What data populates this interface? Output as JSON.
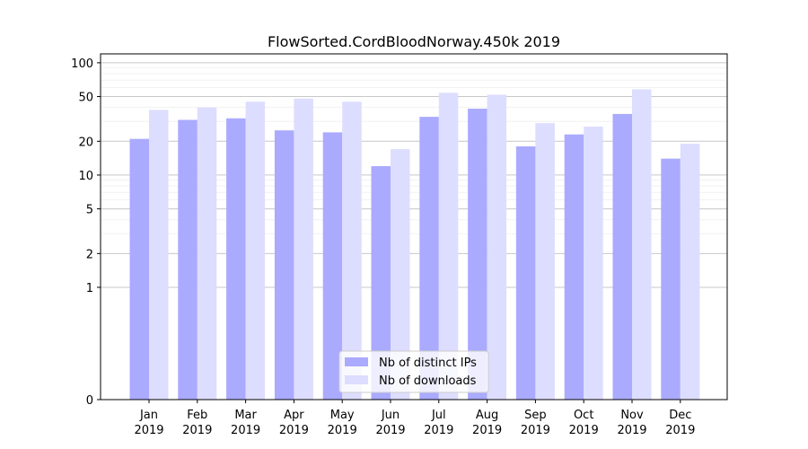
{
  "chart_data": {
    "type": "bar",
    "title": "FlowSorted.CordBloodNorway.450k 2019",
    "xlabel": "",
    "ylabel": "",
    "y_scale": "symlog",
    "ylim": [
      0,
      120
    ],
    "y_ticks": [
      0,
      1,
      2,
      5,
      10,
      20,
      50,
      100
    ],
    "grid": "horizontal",
    "legend_position": "bottom-center",
    "categories": [
      {
        "month": "Jan",
        "year": "2019"
      },
      {
        "month": "Feb",
        "year": "2019"
      },
      {
        "month": "Mar",
        "year": "2019"
      },
      {
        "month": "Apr",
        "year": "2019"
      },
      {
        "month": "May",
        "year": "2019"
      },
      {
        "month": "Jun",
        "year": "2019"
      },
      {
        "month": "Jul",
        "year": "2019"
      },
      {
        "month": "Aug",
        "year": "2019"
      },
      {
        "month": "Sep",
        "year": "2019"
      },
      {
        "month": "Oct",
        "year": "2019"
      },
      {
        "month": "Nov",
        "year": "2019"
      },
      {
        "month": "Dec",
        "year": "2019"
      }
    ],
    "series": [
      {
        "name": "Nb of distinct IPs",
        "color": "#aaaaff",
        "values": [
          21,
          31,
          32,
          25,
          24,
          12,
          33,
          39,
          18,
          23,
          35,
          14
        ]
      },
      {
        "name": "Nb of downloads",
        "color": "#ddddff",
        "values": [
          38,
          40,
          45,
          48,
          45,
          17,
          54,
          52,
          29,
          27,
          58,
          19
        ]
      }
    ]
  }
}
